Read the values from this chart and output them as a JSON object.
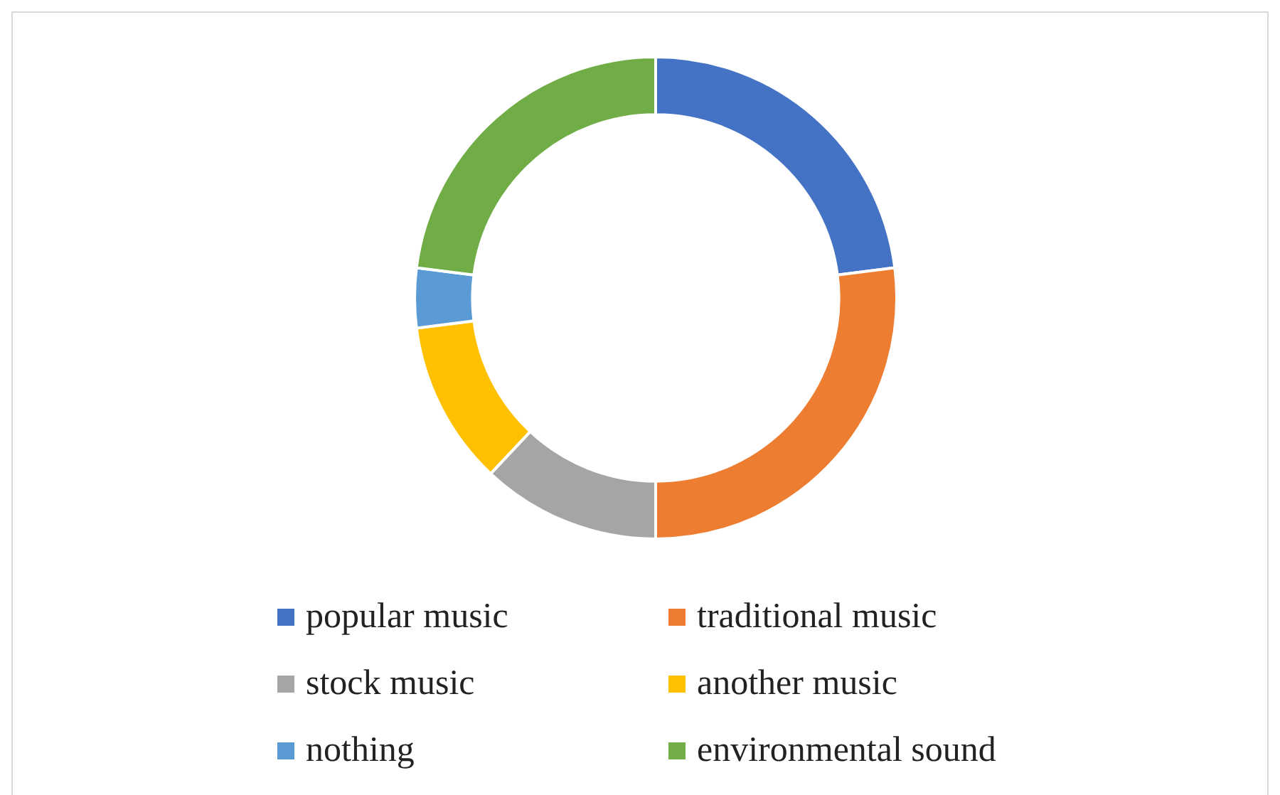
{
  "chart_data": {
    "type": "donut",
    "categories": [
      "popular music",
      "traditional music",
      "stock music",
      "another music",
      "nothing",
      "environmental sound"
    ],
    "values": [
      23,
      27,
      12,
      11,
      4,
      23
    ],
    "colors": [
      "#4472c4",
      "#ed7d31",
      "#a5a5a5",
      "#ffc000",
      "#5b9bd5",
      "#70ad47"
    ],
    "legend": "bottom"
  }
}
